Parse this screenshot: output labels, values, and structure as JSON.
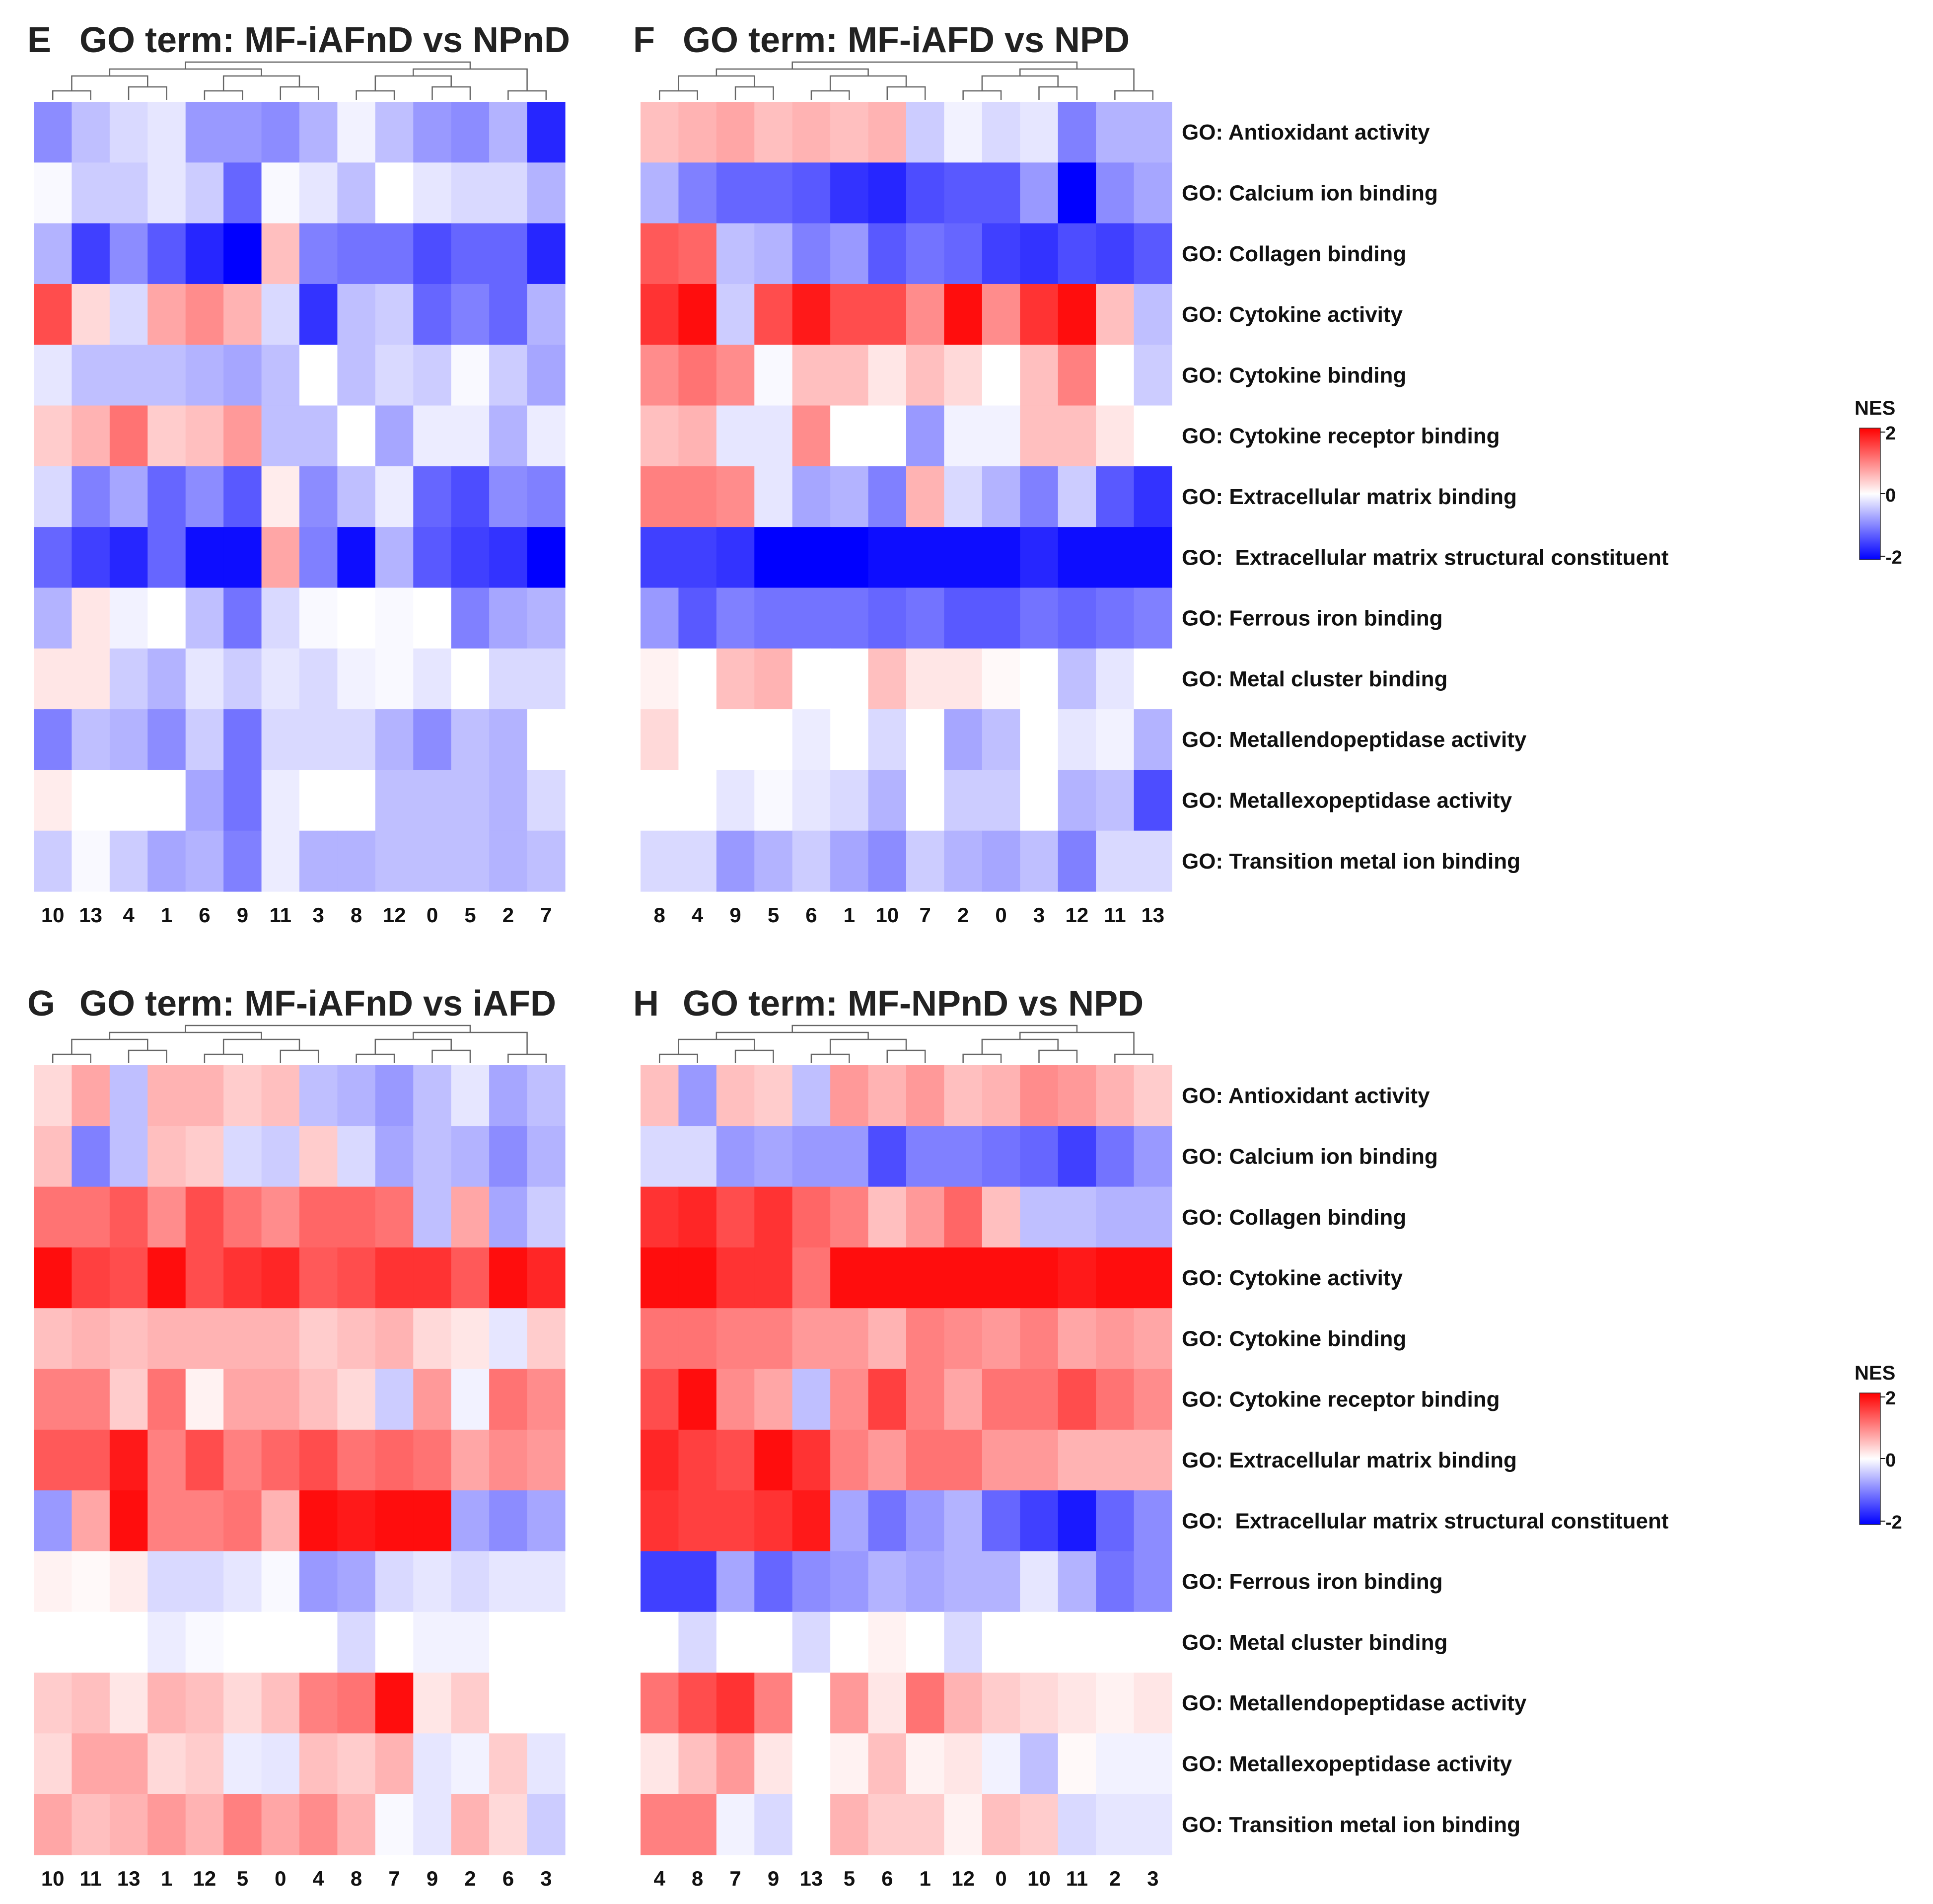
{
  "chart_data": [
    {
      "type": "heatmap",
      "panel": "E",
      "title": "GO term: MF-iAFnD vs NPnD",
      "columns": [
        "10",
        "13",
        "4",
        "1",
        "6",
        "9",
        "11",
        "3",
        "8",
        "12",
        "0",
        "5",
        "2",
        "7"
      ],
      "rows": [
        "GO: Antioxidant activity",
        "GO: Calcium ion binding",
        "GO: Collagen binding",
        "GO: Cytokine activity",
        "GO: Cytokine binding",
        "GO: Cytokine receptor binding",
        "GO: Extracellular matrix binding",
        "GO:  Extracellular matrix structural constituent",
        "GO: Ferrous iron binding",
        "GO: Metal cluster binding",
        "GO: Metallendopeptidase activity",
        "GO: Metallexopeptidase activity",
        "GO: Transition metal ion binding"
      ],
      "values": [
        [
          -0.9,
          -0.5,
          -0.3,
          -0.2,
          -0.8,
          -0.8,
          -0.9,
          -0.6,
          -0.1,
          -0.5,
          -0.8,
          -0.9,
          -0.6,
          -1.7
        ],
        [
          -0.05,
          -0.4,
          -0.4,
          -0.2,
          -0.4,
          -1.2,
          -0.05,
          -0.2,
          -0.5,
          0,
          -0.2,
          -0.3,
          -0.3,
          -0.6
        ],
        [
          -0.6,
          -1.5,
          -0.9,
          -1.3,
          -1.7,
          -2.0,
          0.5,
          -1.0,
          -1.1,
          -1.1,
          -1.4,
          -1.2,
          -1.2,
          -1.7
        ],
        [
          1.4,
          0.3,
          -0.3,
          0.7,
          0.9,
          0.6,
          -0.3,
          -1.6,
          -0.5,
          -0.4,
          -1.2,
          -1.0,
          -1.2,
          -0.6
        ],
        [
          -0.2,
          -0.5,
          -0.5,
          -0.5,
          -0.6,
          -0.7,
          -0.5,
          0,
          -0.5,
          -0.3,
          -0.4,
          -0.05,
          -0.4,
          -0.7
        ],
        [
          0.4,
          0.6,
          1.1,
          0.4,
          0.5,
          0.8,
          -0.5,
          -0.5,
          0,
          -0.7,
          -0.15,
          -0.15,
          -0.6,
          -0.15
        ],
        [
          -0.3,
          -1.0,
          -0.7,
          -1.2,
          -0.9,
          -1.3,
          0.15,
          -0.9,
          -0.5,
          -0.15,
          -1.2,
          -1.4,
          -0.9,
          -1.0
        ],
        [
          -1.2,
          -1.5,
          -1.7,
          -1.2,
          -1.9,
          -1.9,
          0.7,
          -1.0,
          -1.9,
          -0.6,
          -1.3,
          -1.5,
          -1.6,
          -2.0
        ],
        [
          -0.6,
          0.2,
          -0.1,
          0,
          -0.5,
          -1.1,
          -0.3,
          -0.05,
          0,
          -0.05,
          0,
          -1.0,
          -0.7,
          -0.6
        ],
        [
          0.2,
          0.2,
          -0.4,
          -0.6,
          -0.2,
          -0.4,
          -0.2,
          -0.3,
          -0.1,
          -0.05,
          -0.2,
          0,
          -0.3,
          -0.3
        ],
        [
          -1.0,
          -0.5,
          -0.6,
          -0.9,
          -0.4,
          -1.1,
          -0.3,
          -0.3,
          -0.3,
          -0.6,
          -0.9,
          -0.5,
          -0.6,
          0
        ],
        [
          0.15,
          0,
          0,
          0,
          -0.7,
          -1.1,
          -0.15,
          0,
          0,
          -0.5,
          -0.5,
          -0.5,
          -0.6,
          -0.3
        ],
        [
          -0.4,
          -0.05,
          -0.4,
          -0.7,
          -0.6,
          -1.0,
          -0.15,
          -0.6,
          -0.6,
          -0.5,
          -0.5,
          -0.5,
          -0.6,
          -0.5
        ]
      ],
      "scale": {
        "min": -2,
        "max": 2
      }
    },
    {
      "type": "heatmap",
      "panel": "F",
      "title": "GO term: MF-iAFD vs NPD",
      "columns": [
        "8",
        "4",
        "9",
        "5",
        "6",
        "1",
        "10",
        "7",
        "2",
        "0",
        "3",
        "12",
        "11",
        "13"
      ],
      "rows": [
        "GO: Antioxidant activity",
        "GO: Calcium ion binding",
        "GO: Collagen binding",
        "GO: Cytokine activity",
        "GO: Cytokine binding",
        "GO: Cytokine receptor binding",
        "GO: Extracellular matrix binding",
        "GO:  Extracellular matrix structural constituent",
        "GO: Ferrous iron binding",
        "GO: Metal cluster binding",
        "GO: Metallendopeptidase activity",
        "GO: Metallexopeptidase activity",
        "GO: Transition metal ion binding"
      ],
      "values": [
        [
          0.5,
          0.6,
          0.7,
          0.5,
          0.6,
          0.5,
          0.6,
          -0.4,
          -0.1,
          -0.3,
          -0.2,
          -1.0,
          -0.6,
          -0.6
        ],
        [
          -0.6,
          -1.0,
          -1.2,
          -1.2,
          -1.3,
          -1.6,
          -1.7,
          -1.4,
          -1.3,
          -1.3,
          -0.8,
          -2.0,
          -0.9,
          -0.7
        ],
        [
          1.3,
          1.2,
          -0.5,
          -0.6,
          -1.0,
          -0.8,
          -1.3,
          -1.1,
          -1.2,
          -1.5,
          -1.6,
          -1.4,
          -1.5,
          -1.3
        ],
        [
          1.6,
          1.9,
          -0.4,
          1.4,
          1.8,
          1.4,
          1.4,
          0.9,
          1.9,
          0.9,
          1.6,
          1.9,
          0.5,
          -0.5
        ],
        [
          0.9,
          1.1,
          0.9,
          -0.05,
          0.5,
          0.5,
          0.2,
          0.5,
          0.3,
          0,
          0.5,
          1.0,
          0,
          -0.4
        ],
        [
          0.5,
          0.6,
          -0.2,
          -0.2,
          0.9,
          0,
          0,
          -0.8,
          -0.1,
          -0.1,
          0.5,
          0.5,
          0.2,
          0
        ],
        [
          1.0,
          1.0,
          0.9,
          -0.2,
          -0.7,
          -0.6,
          -1.0,
          0.6,
          -0.3,
          -0.6,
          -1.0,
          -0.4,
          -1.3,
          -1.6
        ],
        [
          -1.5,
          -1.5,
          -1.6,
          -2.0,
          -2.0,
          -2.0,
          -1.9,
          -1.9,
          -1.9,
          -1.9,
          -1.7,
          -1.9,
          -1.9,
          -1.9
        ],
        [
          -0.8,
          -1.3,
          -1.0,
          -1.1,
          -1.1,
          -1.1,
          -1.2,
          -1.1,
          -1.3,
          -1.3,
          -1.1,
          -1.2,
          -1.1,
          -1.0
        ],
        [
          0.1,
          0,
          0.5,
          0.6,
          0,
          0,
          0.5,
          0.2,
          0.2,
          0.05,
          0,
          -0.5,
          -0.2,
          0
        ],
        [
          0.3,
          0,
          0,
          0,
          -0.15,
          0,
          -0.3,
          0,
          -0.7,
          -0.5,
          0,
          -0.2,
          -0.1,
          -0.6
        ],
        [
          0,
          0,
          -0.2,
          -0.05,
          -0.2,
          -0.3,
          -0.6,
          0,
          -0.4,
          -0.4,
          0,
          -0.6,
          -0.5,
          -1.4
        ],
        [
          -0.3,
          -0.3,
          -0.8,
          -0.6,
          -0.4,
          -0.7,
          -0.9,
          -0.4,
          -0.6,
          -0.7,
          -0.5,
          -1.0,
          -0.3,
          -0.3
        ]
      ],
      "scale": {
        "min": -2,
        "max": 2
      }
    },
    {
      "type": "heatmap",
      "panel": "G",
      "title": "GO term: MF-iAFnD vs iAFD",
      "columns": [
        "10",
        "11",
        "13",
        "1",
        "12",
        "5",
        "0",
        "4",
        "8",
        "7",
        "9",
        "2",
        "6",
        "3"
      ],
      "rows": [
        "GO: Antioxidant activity",
        "GO: Calcium ion binding",
        "GO: Collagen binding",
        "GO: Cytokine activity",
        "GO: Cytokine binding",
        "GO: Cytokine receptor binding",
        "GO: Extracellular matrix binding",
        "GO:  Extracellular matrix structural constituent",
        "GO: Ferrous iron binding",
        "GO: Metal cluster binding",
        "GO: Metallendopeptidase activity",
        "GO: Metallexopeptidase activity",
        "GO: Transition metal ion binding"
      ],
      "values": [
        [
          0.3,
          0.7,
          -0.5,
          0.6,
          0.6,
          0.4,
          0.5,
          -0.5,
          -0.6,
          -0.8,
          -0.5,
          -0.2,
          -0.7,
          -0.5
        ],
        [
          0.5,
          -1.0,
          -0.5,
          0.5,
          0.4,
          -0.3,
          -0.4,
          0.4,
          -0.3,
          -0.7,
          -0.5,
          -0.6,
          -0.9,
          -0.6
        ],
        [
          1.1,
          1.1,
          1.3,
          0.9,
          1.4,
          1.1,
          0.9,
          1.2,
          1.2,
          1.1,
          -0.5,
          0.7,
          -0.7,
          -0.4
        ],
        [
          1.9,
          1.5,
          1.4,
          1.9,
          1.4,
          1.6,
          1.7,
          1.3,
          1.4,
          1.6,
          1.6,
          1.3,
          1.9,
          1.7
        ],
        [
          0.5,
          0.6,
          0.5,
          0.6,
          0.6,
          0.6,
          0.6,
          0.4,
          0.5,
          0.6,
          0.3,
          0.2,
          -0.2,
          0.4
        ],
        [
          1.0,
          1.0,
          0.4,
          1.1,
          0.1,
          0.7,
          0.7,
          0.5,
          0.3,
          -0.4,
          0.8,
          -0.1,
          1.1,
          0.9
        ],
        [
          1.3,
          1.3,
          1.8,
          1.0,
          1.4,
          1.0,
          1.2,
          1.4,
          1.1,
          1.2,
          1.1,
          0.7,
          0.9,
          0.8
        ],
        [
          -0.8,
          0.7,
          1.9,
          1.0,
          1.0,
          1.1,
          0.6,
          1.9,
          1.8,
          1.9,
          1.9,
          -0.7,
          -0.9,
          -0.7
        ],
        [
          0.1,
          0.05,
          0.15,
          -0.3,
          -0.3,
          -0.2,
          -0.05,
          -0.8,
          -0.7,
          -0.3,
          -0.2,
          -0.3,
          -0.2,
          -0.2
        ],
        [
          0,
          0,
          0,
          -0.15,
          -0.05,
          0,
          0,
          0,
          -0.3,
          0,
          -0.1,
          -0.1,
          0,
          0
        ],
        [
          0.4,
          0.5,
          0.2,
          0.6,
          0.5,
          0.3,
          0.5,
          1.0,
          1.1,
          1.9,
          0.2,
          0.4,
          0,
          0
        ],
        [
          0.3,
          0.7,
          0.7,
          0.3,
          0.4,
          -0.15,
          -0.2,
          0.5,
          0.4,
          0.6,
          -0.2,
          -0.1,
          0.4,
          -0.2
        ],
        [
          0.7,
          0.5,
          0.6,
          0.8,
          0.6,
          1.0,
          0.7,
          0.9,
          0.6,
          -0.05,
          -0.2,
          0.6,
          0.3,
          -0.4
        ]
      ],
      "scale": {
        "min": -2,
        "max": 2
      }
    },
    {
      "type": "heatmap",
      "panel": "H",
      "title": "GO term: MF-NPnD vs NPD",
      "columns": [
        "4",
        "8",
        "7",
        "9",
        "13",
        "5",
        "6",
        "1",
        "12",
        "0",
        "10",
        "11",
        "2",
        "3"
      ],
      "rows": [
        "GO: Antioxidant activity",
        "GO: Calcium ion binding",
        "GO: Collagen binding",
        "GO: Cytokine activity",
        "GO: Cytokine binding",
        "GO: Cytokine receptor binding",
        "GO: Extracellular matrix binding",
        "GO:  Extracellular matrix structural constituent",
        "GO: Ferrous iron binding",
        "GO: Metal cluster binding",
        "GO: Metallendopeptidase activity",
        "GO: Metallexopeptidase activity",
        "GO: Transition metal ion binding"
      ],
      "values": [
        [
          0.5,
          -0.8,
          0.5,
          0.4,
          -0.5,
          0.8,
          0.6,
          0.8,
          0.5,
          0.6,
          0.9,
          0.8,
          0.6,
          0.4
        ],
        [
          -0.3,
          -0.3,
          -0.8,
          -0.7,
          -0.8,
          -0.8,
          -1.4,
          -1.0,
          -1.0,
          -1.1,
          -1.2,
          -1.5,
          -1.1,
          -0.8
        ],
        [
          1.6,
          1.7,
          1.4,
          1.6,
          1.2,
          1.0,
          0.5,
          0.8,
          1.2,
          0.5,
          -0.5,
          -0.5,
          -0.6,
          -0.6
        ],
        [
          1.9,
          1.9,
          1.6,
          1.6,
          1.1,
          1.9,
          1.9,
          1.9,
          1.9,
          1.9,
          1.9,
          1.8,
          1.9,
          1.9
        ],
        [
          1.1,
          1.1,
          1.0,
          1.0,
          0.8,
          0.8,
          0.6,
          1.0,
          0.9,
          0.8,
          1.0,
          0.7,
          0.8,
          0.7
        ],
        [
          1.4,
          1.9,
          0.9,
          0.7,
          -0.5,
          0.9,
          1.5,
          1.0,
          0.7,
          1.1,
          1.1,
          1.4,
          1.1,
          0.9
        ],
        [
          1.7,
          1.5,
          1.4,
          1.9,
          1.6,
          1.0,
          0.8,
          1.1,
          1.1,
          0.8,
          0.8,
          0.6,
          0.6,
          0.6
        ],
        [
          1.6,
          1.5,
          1.5,
          1.6,
          1.8,
          -0.7,
          -1.1,
          -0.8,
          -0.6,
          -1.2,
          -1.5,
          -1.8,
          -1.2,
          -0.9
        ],
        [
          -1.5,
          -1.5,
          -0.7,
          -1.2,
          -0.9,
          -0.8,
          -0.6,
          -0.7,
          -0.6,
          -0.6,
          -0.2,
          -0.6,
          -1.1,
          -0.9
        ],
        [
          0,
          -0.3,
          0,
          0,
          -0.3,
          0,
          0.1,
          0,
          -0.3,
          0,
          0,
          0,
          0,
          0
        ],
        [
          1.1,
          1.4,
          1.6,
          1.0,
          0,
          0.8,
          0.2,
          1.1,
          0.6,
          0.4,
          0.3,
          0.2,
          0.1,
          0.2
        ],
        [
          0.2,
          0.5,
          0.8,
          0.2,
          0,
          0.1,
          0.5,
          0.1,
          0.2,
          -0.1,
          -0.5,
          0.05,
          -0.1,
          -0.1
        ],
        [
          1.0,
          1.0,
          -0.1,
          -0.3,
          0,
          0.6,
          0.4,
          0.4,
          0.1,
          0.5,
          0.4,
          -0.3,
          -0.2,
          -0.2
        ]
      ],
      "scale": {
        "min": -2,
        "max": 2
      }
    }
  ],
  "panel_letters": [
    "E",
    "F",
    "G",
    "H"
  ],
  "legend": {
    "title": "NES",
    "max_label": "2",
    "mid_label": "0",
    "min_label": "-2"
  },
  "colors": {
    "high": "#ff0000",
    "mid": "#ffffff",
    "low": "#0000ff"
  }
}
